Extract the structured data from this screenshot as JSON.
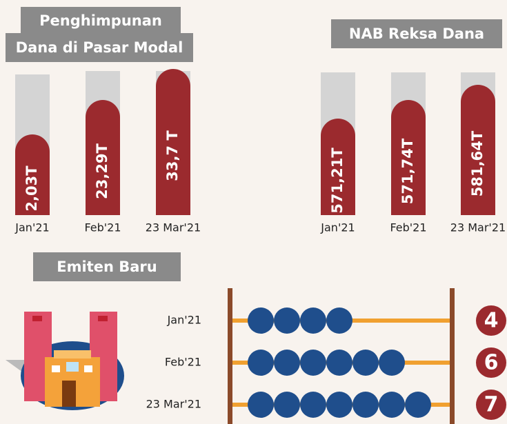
{
  "fundraising": {
    "title_lines": [
      "Penghimpunan",
      "Dana di Pasar Modal"
    ],
    "bars": [
      {
        "label": "2,03T",
        "date": "Jan'21"
      },
      {
        "label": "23,29T",
        "date": "Feb'21"
      },
      {
        "label": "33,7 T",
        "date": "23 Mar'21"
      }
    ]
  },
  "nab": {
    "title": "NAB Reksa Dana",
    "bars": [
      {
        "label": "571,21T",
        "date": "Jan'21"
      },
      {
        "label": "571,74T",
        "date": "Feb'21"
      },
      {
        "label": "581,64T",
        "date": "23 Mar'21"
      }
    ]
  },
  "new_issuers": {
    "title": "Emiten Baru",
    "rows": [
      {
        "date": "Jan'21",
        "count": 4
      },
      {
        "date": "Feb'21",
        "count": 6
      },
      {
        "date": "23 Mar'21",
        "count": 7
      }
    ]
  }
}
